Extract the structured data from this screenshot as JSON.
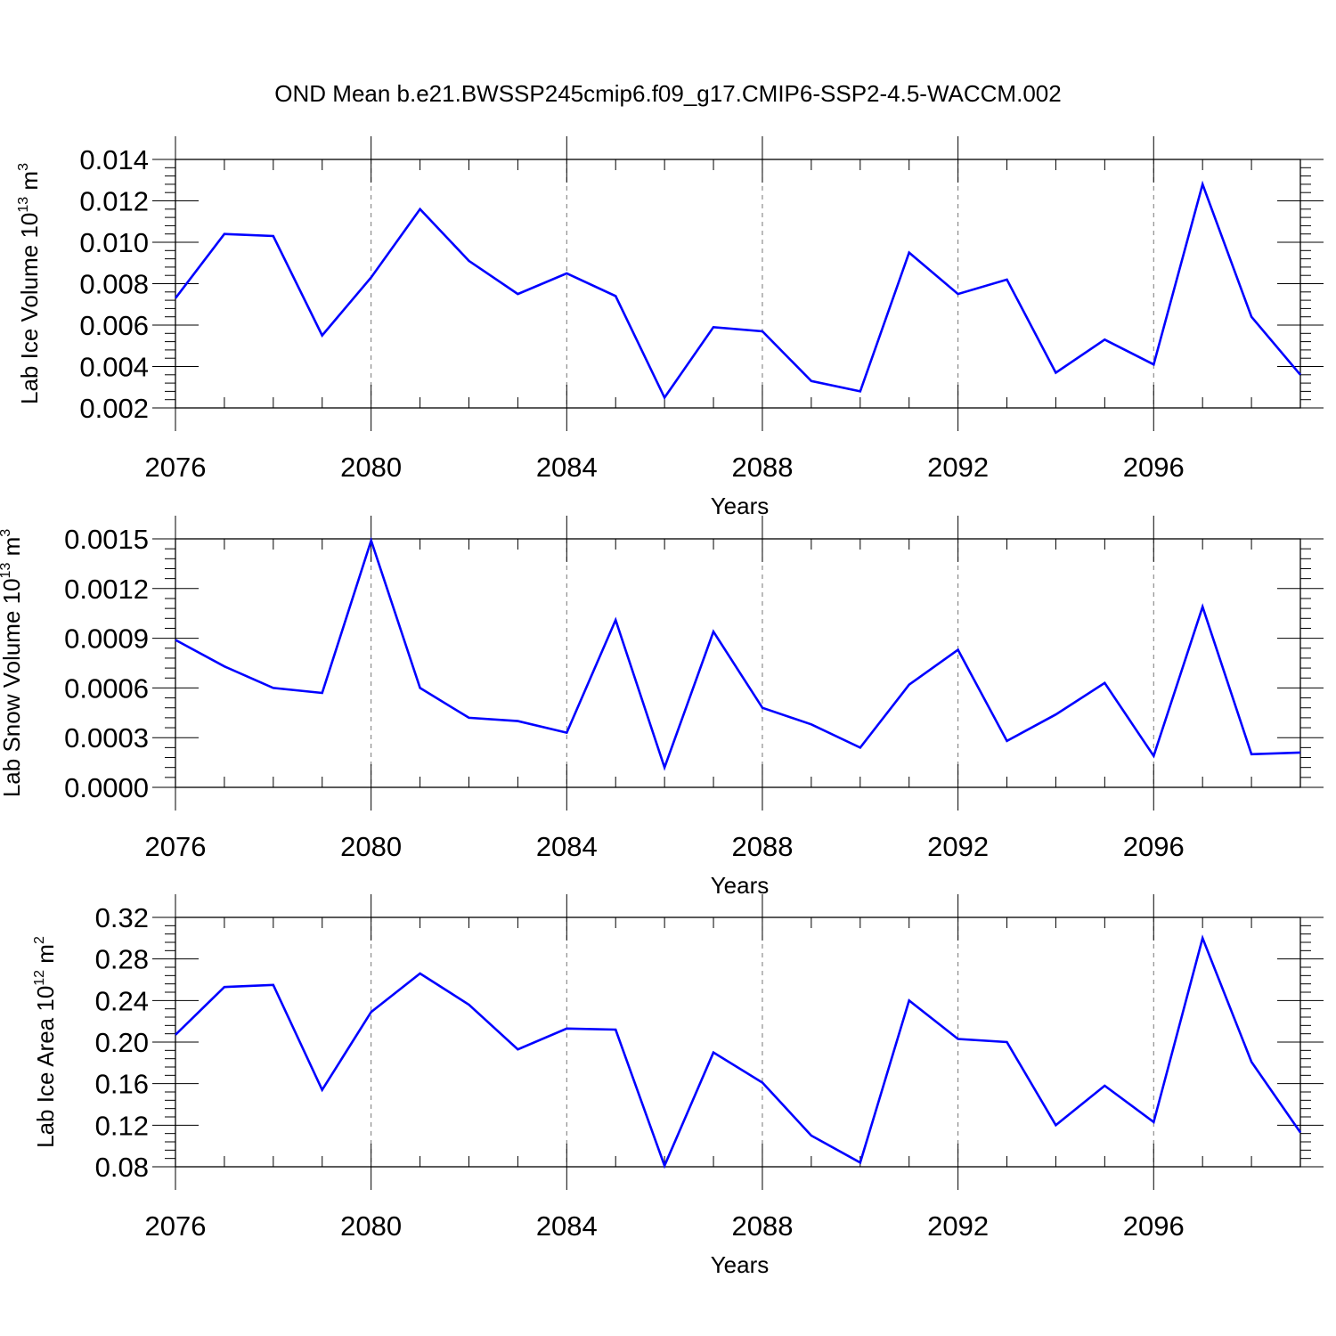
{
  "figure": {
    "title": "OND Mean b.e21.BWSSP245cmip6.f09_g17.CMIP6-SSP2-4.5-WACCM.002",
    "line_color": "#0000ff"
  },
  "chart_data": [
    {
      "type": "line",
      "title": "",
      "xlabel": "Years",
      "ylabel": "Lab Ice Volume 10",
      "ylabel_exp": "13",
      "ylabel_unit": " m",
      "ylabel_unit_exp": "3",
      "xlim": [
        2076,
        2099
      ],
      "ylim": [
        0.002,
        0.014
      ],
      "xticks": [
        2076,
        2080,
        2084,
        2088,
        2092,
        2096
      ],
      "xtick_labels": [
        "2076",
        "2080",
        "2084",
        "2088",
        "2092",
        "2096"
      ],
      "yticks": [
        0.002,
        0.004,
        0.006,
        0.008,
        0.01,
        0.012,
        0.014
      ],
      "ytick_labels": [
        "0.002",
        "0.004",
        "0.006",
        "0.008",
        "0.010",
        "0.012",
        "0.014"
      ],
      "grid": "vertical-dashed-at-major-x-ticks",
      "series": [
        {
          "name": "Lab Ice Volume",
          "x": [
            2076,
            2077,
            2078,
            2079,
            2080,
            2081,
            2082,
            2083,
            2084,
            2085,
            2086,
            2087,
            2088,
            2089,
            2090,
            2091,
            2092,
            2093,
            2094,
            2095,
            2096,
            2097,
            2098,
            2099
          ],
          "values": [
            0.0073,
            0.0104,
            0.0103,
            0.0055,
            0.0083,
            0.0116,
            0.0091,
            0.0075,
            0.0085,
            0.0074,
            0.0025,
            0.0059,
            0.0057,
            0.0033,
            0.0028,
            0.0095,
            0.0075,
            0.0082,
            0.0037,
            0.0053,
            0.0041,
            0.0128,
            0.0064,
            0.0036
          ]
        }
      ]
    },
    {
      "type": "line",
      "title": "",
      "xlabel": "Years",
      "ylabel": "Lab Snow Volume 10",
      "ylabel_exp": "13",
      "ylabel_unit": " m",
      "ylabel_unit_exp": "3",
      "xlim": [
        2076,
        2099
      ],
      "ylim": [
        0.0,
        0.0015
      ],
      "xticks": [
        2076,
        2080,
        2084,
        2088,
        2092,
        2096
      ],
      "xtick_labels": [
        "2076",
        "2080",
        "2084",
        "2088",
        "2092",
        "2096"
      ],
      "yticks": [
        0.0,
        0.0003,
        0.0006,
        0.0009,
        0.0012,
        0.0015
      ],
      "ytick_labels": [
        "0.0000",
        "0.0003",
        "0.0006",
        "0.0009",
        "0.0012",
        "0.0015"
      ],
      "grid": "vertical-dashed-at-major-x-ticks",
      "series": [
        {
          "name": "Lab Snow Volume",
          "x": [
            2076,
            2077,
            2078,
            2079,
            2080,
            2081,
            2082,
            2083,
            2084,
            2085,
            2086,
            2087,
            2088,
            2089,
            2090,
            2091,
            2092,
            2093,
            2094,
            2095,
            2096,
            2097,
            2098,
            2099
          ],
          "values": [
            0.00089,
            0.00073,
            0.0006,
            0.00057,
            0.00149,
            0.0006,
            0.00042,
            0.0004,
            0.00033,
            0.00101,
            0.00012,
            0.00094,
            0.00048,
            0.00038,
            0.00024,
            0.00062,
            0.00083,
            0.00028,
            0.00044,
            0.00063,
            0.00019,
            0.00109,
            0.0002,
            0.00021
          ]
        }
      ]
    },
    {
      "type": "line",
      "title": "",
      "xlabel": "Years",
      "ylabel": "Lab Ice Area 10",
      "ylabel_exp": "12",
      "ylabel_unit": " m",
      "ylabel_unit_exp": "2",
      "xlim": [
        2076,
        2099
      ],
      "ylim": [
        0.08,
        0.32
      ],
      "xticks": [
        2076,
        2080,
        2084,
        2088,
        2092,
        2096
      ],
      "xtick_labels": [
        "2076",
        "2080",
        "2084",
        "2088",
        "2092",
        "2096"
      ],
      "yticks": [
        0.08,
        0.12,
        0.16,
        0.2,
        0.24,
        0.28,
        0.32
      ],
      "ytick_labels": [
        "0.08",
        "0.12",
        "0.16",
        "0.20",
        "0.24",
        "0.28",
        "0.32"
      ],
      "grid": "vertical-dashed-at-major-x-ticks",
      "series": [
        {
          "name": "Lab Ice Area",
          "x": [
            2076,
            2077,
            2078,
            2079,
            2080,
            2081,
            2082,
            2083,
            2084,
            2085,
            2086,
            2087,
            2088,
            2089,
            2090,
            2091,
            2092,
            2093,
            2094,
            2095,
            2096,
            2097,
            2098,
            2099
          ],
          "values": [
            0.207,
            0.253,
            0.255,
            0.154,
            0.229,
            0.266,
            0.236,
            0.193,
            0.213,
            0.212,
            0.081,
            0.19,
            0.161,
            0.11,
            0.084,
            0.24,
            0.203,
            0.2,
            0.12,
            0.158,
            0.123,
            0.3,
            0.181,
            0.113
          ]
        }
      ]
    }
  ]
}
